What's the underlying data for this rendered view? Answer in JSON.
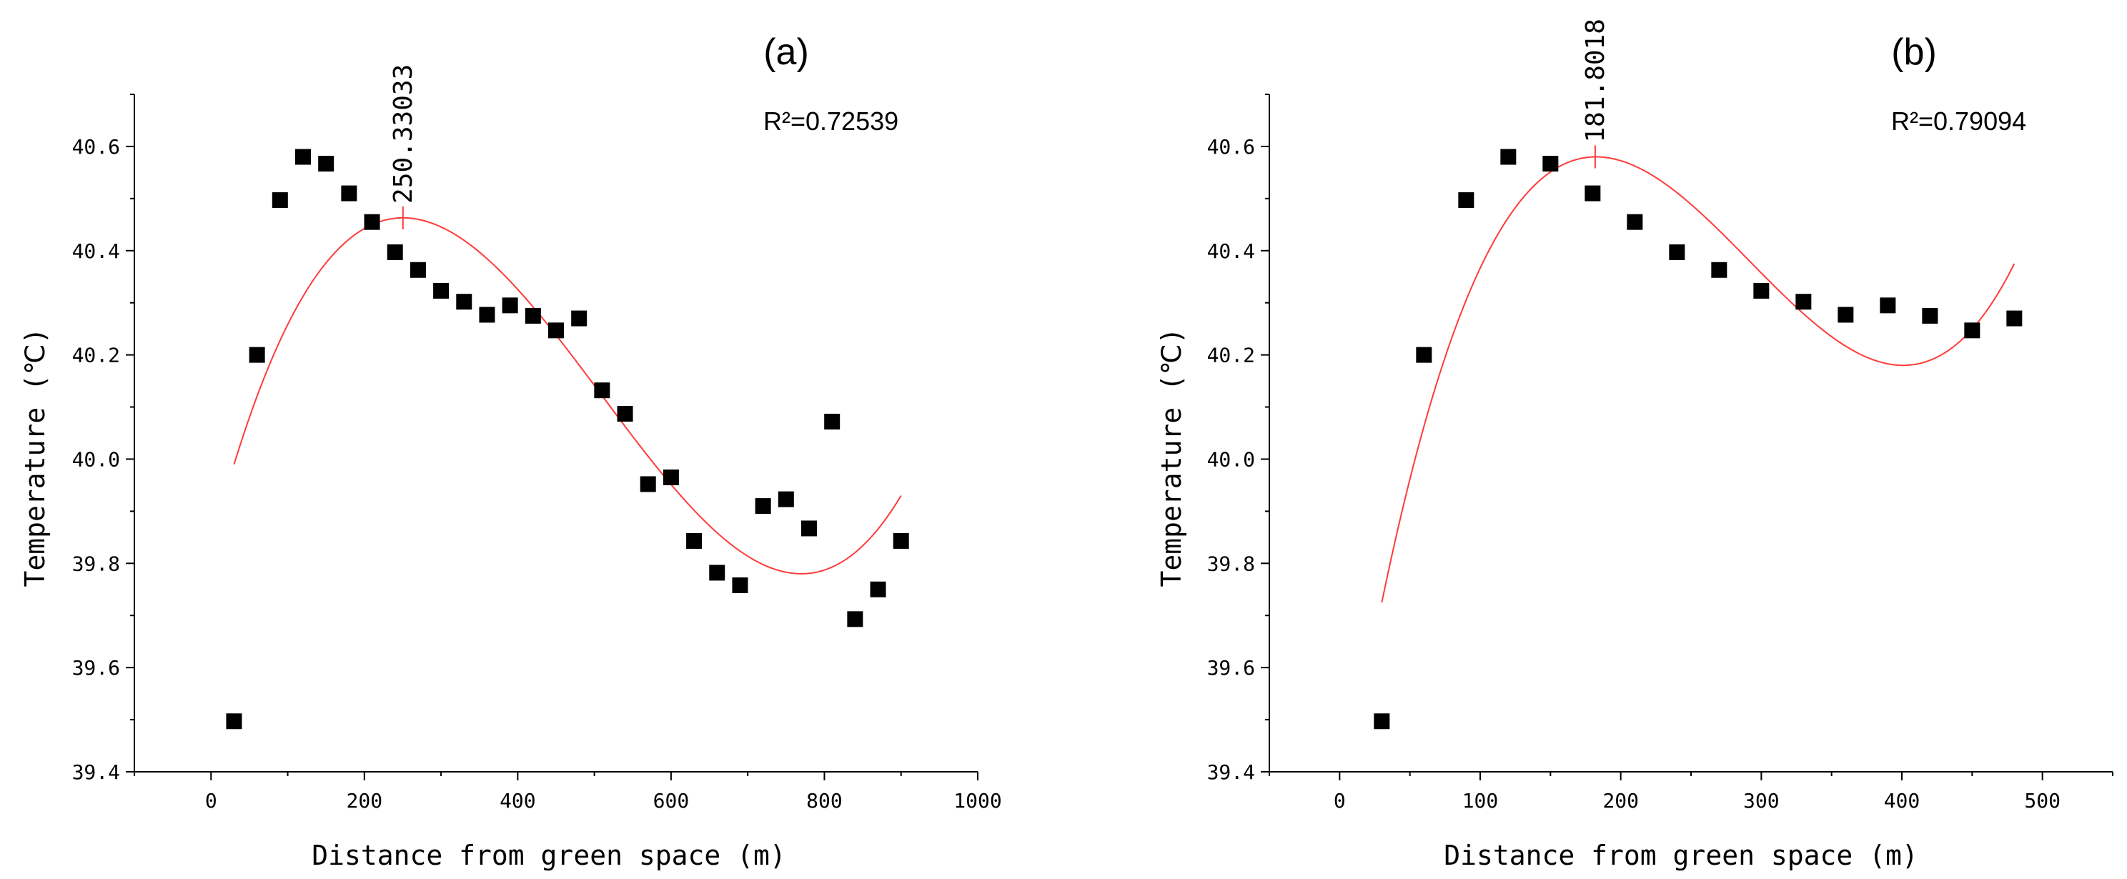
{
  "chart_data": [
    {
      "type": "scatter",
      "panel_label": "(a)",
      "r_squared": "R²=0.72539",
      "xlabel": "Distance from green space (m)",
      "ylabel": "Temperature (℃)",
      "xlim": [
        -100,
        1000
      ],
      "ylim": [
        39.4,
        40.7
      ],
      "xticks": [
        0,
        200,
        400,
        600,
        800,
        1000
      ],
      "yticks": [
        39.4,
        39.6,
        39.8,
        40.0,
        40.2,
        40.4,
        40.6
      ],
      "xtick_labels": [
        "0",
        "200",
        "400",
        "600",
        "800",
        "1000"
      ],
      "ytick_labels": [
        "39.4",
        "39.6",
        "39.8",
        "40.0",
        "40.2",
        "40.4",
        "40.6"
      ],
      "points": {
        "x": [
          30,
          60,
          90,
          120,
          150,
          180,
          210,
          240,
          270,
          300,
          330,
          360,
          390,
          420,
          450,
          480,
          510,
          540,
          570,
          600,
          630,
          660,
          690,
          720,
          750,
          780,
          810,
          840,
          870,
          900
        ],
        "y": [
          39.497,
          40.2,
          40.497,
          40.58,
          40.567,
          40.51,
          40.455,
          40.397,
          40.363,
          40.323,
          40.302,
          40.277,
          40.295,
          40.275,
          40.247,
          40.27,
          40.132,
          40.087,
          39.952,
          39.965,
          39.843,
          39.782,
          39.758,
          39.91,
          39.923,
          39.867,
          40.072,
          39.693,
          39.75,
          39.843
        ]
      },
      "fit": {
        "type": "cubic",
        "x_range": [
          30,
          900
        ],
        "points": [
          [
            30,
            39.99
          ],
          [
            250,
            40.463
          ],
          [
            770,
            39.78
          ],
          [
            900,
            39.93
          ]
        ]
      },
      "peak": {
        "x": 250.33033,
        "y": 40.463,
        "label": "250.33033"
      }
    },
    {
      "type": "scatter",
      "panel_label": "(b)",
      "r_squared": "R²=0.79094",
      "xlabel": "Distance from green space (m)",
      "ylabel": "Temperature (℃)",
      "xlim": [
        -50,
        550
      ],
      "ylim": [
        39.4,
        40.7
      ],
      "xticks": [
        0,
        100,
        200,
        300,
        400,
        500
      ],
      "yticks": [
        39.4,
        39.6,
        39.8,
        40.0,
        40.2,
        40.4,
        40.6
      ],
      "xtick_labels": [
        "0",
        "100",
        "200",
        "300",
        "400",
        "500"
      ],
      "ytick_labels": [
        "39.4",
        "39.6",
        "39.8",
        "40.0",
        "40.2",
        "40.4",
        "40.6"
      ],
      "points": {
        "x": [
          30,
          60,
          90,
          120,
          150,
          180,
          210,
          240,
          270,
          300,
          330,
          360,
          390,
          420,
          450,
          480
        ],
        "y": [
          39.497,
          40.2,
          40.497,
          40.58,
          40.567,
          40.51,
          40.455,
          40.397,
          40.363,
          40.323,
          40.302,
          40.277,
          40.295,
          40.275,
          40.247,
          40.27
        ]
      },
      "fit": {
        "type": "cubic",
        "x_range": [
          30,
          480
        ],
        "points": [
          [
            30,
            39.725
          ],
          [
            181.8,
            40.58
          ],
          [
            400,
            40.18
          ],
          [
            480,
            40.375
          ]
        ]
      },
      "peak": {
        "x": 181.8018,
        "y": 40.58,
        "label": "181.8018"
      }
    }
  ],
  "colors": {
    "points": "#000000",
    "fit": "#ff3b3b",
    "axis": "#000000"
  }
}
